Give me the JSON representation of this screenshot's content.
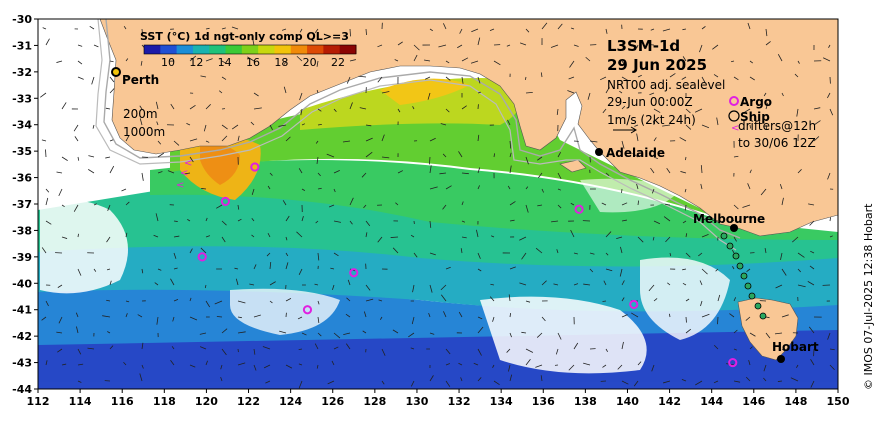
{
  "colorbar": {
    "title": "SST (°C) 1d ngt-only comp QL>=3",
    "ticks": [
      "10",
      "12",
      "14",
      "16",
      "18",
      "20",
      "22"
    ],
    "colors": [
      "#1c1aa8",
      "#1f4fd4",
      "#1b8ed8",
      "#1ab3b0",
      "#1fc27a",
      "#3cca36",
      "#7ed11a",
      "#c8d80e",
      "#f2c40a",
      "#f08a08",
      "#dd4a06",
      "#b61c04",
      "#8a0404"
    ]
  },
  "title": {
    "product": "L3SM-1d",
    "date": "29 Jun 2025"
  },
  "info": {
    "line1": "NRT00 adj. sealevel",
    "line2": "29-Jun 00:00Z",
    "line3": "1m/s (2kt 24h)"
  },
  "legend": {
    "argo": "Argo",
    "ship": "Ship",
    "drifters": "drifters@12h",
    "drifters_to": "to 30/06 12Z"
  },
  "depth_labels": {
    "d200": "200m",
    "d1000": "1000m"
  },
  "cities": {
    "perth": "Perth",
    "adelaide": "Adelaide",
    "melbourne": "Melbourne",
    "hobart": "Hobart"
  },
  "credit": "© IMOS 07-Jul-2025 12:38 Hobart",
  "axes": {
    "lon_labels": [
      "112",
      "114",
      "116",
      "118",
      "120",
      "122",
      "124",
      "126",
      "128",
      "130",
      "132",
      "134",
      "136",
      "138",
      "140",
      "142",
      "144",
      "146",
      "148",
      "150"
    ],
    "lat_labels": [
      "-30",
      "-31",
      "-32",
      "-33",
      "-34",
      "-35",
      "-36",
      "-37",
      "-38",
      "-39",
      "-40",
      "-41",
      "-42",
      "-43",
      "-44"
    ]
  },
  "argo_floats": [
    {
      "lon": 122.3,
      "lat": -35.6
    },
    {
      "lon": 120.9,
      "lat": -36.9
    },
    {
      "lon": 119.8,
      "lat": -39.0
    },
    {
      "lon": 127.0,
      "lat": -39.6
    },
    {
      "lon": 124.8,
      "lat": -41.0
    },
    {
      "lon": 137.7,
      "lat": -37.2
    },
    {
      "lon": 140.3,
      "lat": -40.8
    },
    {
      "lon": 145.0,
      "lat": -43.0
    }
  ],
  "colors": {
    "land": "#f9c795",
    "argo": "#e020e0",
    "drifter": "#e020e0",
    "contour": "#aaaaaa"
  }
}
